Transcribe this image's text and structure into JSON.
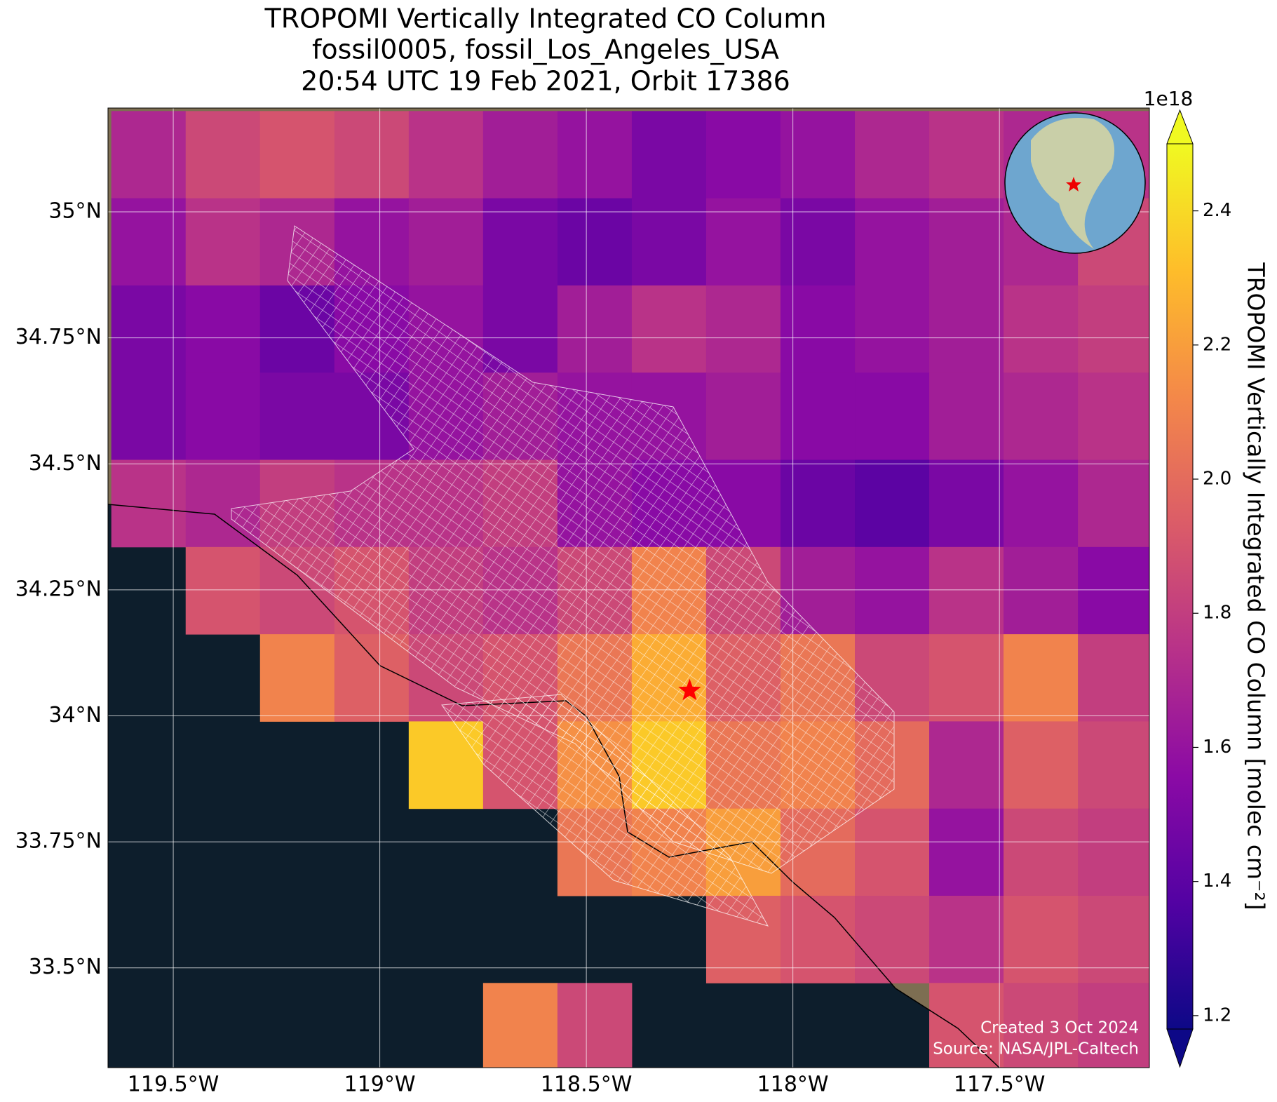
{
  "chart_data": {
    "type": "heatmap",
    "title": [
      "TROPOMI Vertically Integrated CO Column",
      "fossil0005, fossil_Los_Angeles_USA",
      "20:54 UTC 19 Feb 2021, Orbit 17386"
    ],
    "xlim": [
      -119.658,
      -117.137
    ],
    "ylim": [
      33.302,
      35.206
    ],
    "xticks": [
      {
        "value": -119.5,
        "label": "119.5°W"
      },
      {
        "value": -119,
        "label": "119°W"
      },
      {
        "value": -118.5,
        "label": "118.5°W"
      },
      {
        "value": -118,
        "label": "118°W"
      },
      {
        "value": -117.5,
        "label": "117.5°W"
      }
    ],
    "yticks": [
      {
        "value": 33.5,
        "label": "33.5°N"
      },
      {
        "value": 33.75,
        "label": "33.75°N"
      },
      {
        "value": 34,
        "label": "34°N"
      },
      {
        "value": 34.25,
        "label": "34.25°N"
      },
      {
        "value": 34.5,
        "label": "34.5°N"
      },
      {
        "value": 34.75,
        "label": "34.75°N"
      },
      {
        "value": 35,
        "label": "35°N"
      }
    ],
    "grid": true,
    "colormap": "plasma",
    "colorbar": {
      "label": "TROPOMI Vertically Integrated CO Column [molec cm⁻²]",
      "offset_label": "1e18",
      "lim": [
        1.18,
        2.5
      ],
      "ticks": [
        1.2,
        1.4,
        1.6,
        1.8,
        {
          "value": 2,
          "label": "2.0"
        },
        2.2,
        2.4
      ]
    },
    "grid_cells": {
      "lon_edges": [
        -119.65,
        -119.47,
        -119.29,
        -119.11,
        -118.93,
        -118.75,
        -118.57,
        -118.39,
        -118.21,
        -118.03,
        -117.85,
        -117.67,
        -117.49,
        -117.31,
        -117.13
      ],
      "lat_edges": [
        35.2,
        35.027,
        34.854,
        34.681,
        34.508,
        34.335,
        34.162,
        33.989,
        33.816,
        33.643,
        33.47,
        33.297
      ],
      "values": [
        [
          1.7,
          1.85,
          1.9,
          1.85,
          1.75,
          1.65,
          1.6,
          1.5,
          1.55,
          1.6,
          1.7,
          1.75,
          1.7,
          1.75
        ],
        [
          1.6,
          1.75,
          1.7,
          1.6,
          1.65,
          1.5,
          1.45,
          1.5,
          1.6,
          1.5,
          1.6,
          1.65,
          1.7,
          1.85
        ],
        [
          1.5,
          1.55,
          1.45,
          1.55,
          1.6,
          1.5,
          1.65,
          1.75,
          1.7,
          1.55,
          1.6,
          1.65,
          1.75,
          1.8
        ],
        [
          1.5,
          1.55,
          1.5,
          1.5,
          1.6,
          1.65,
          1.6,
          1.6,
          1.65,
          1.55,
          1.55,
          1.65,
          1.7,
          1.75
        ],
        [
          1.75,
          1.7,
          1.8,
          1.75,
          1.75,
          1.8,
          1.6,
          1.55,
          1.55,
          1.45,
          1.4,
          1.5,
          1.6,
          1.7
        ],
        [
          null,
          1.9,
          1.85,
          1.9,
          1.8,
          1.75,
          1.85,
          2.1,
          1.85,
          1.65,
          1.6,
          1.75,
          1.65,
          1.55
        ],
        [
          null,
          null,
          2.1,
          1.95,
          1.85,
          1.9,
          2.05,
          2.25,
          1.95,
          2.05,
          1.85,
          1.9,
          2.1,
          1.8
        ],
        [
          null,
          null,
          null,
          null,
          2.35,
          1.9,
          2.15,
          2.35,
          2.05,
          2.1,
          2.0,
          1.7,
          1.95,
          1.85
        ],
        [
          null,
          null,
          null,
          null,
          null,
          null,
          2.05,
          2.1,
          2.2,
          2.0,
          1.9,
          1.6,
          1.85,
          1.8
        ],
        [
          null,
          null,
          null,
          null,
          null,
          null,
          null,
          null,
          1.95,
          1.9,
          1.85,
          1.75,
          1.9,
          1.85
        ],
        [
          null,
          null,
          null,
          null,
          null,
          2.1,
          1.85,
          null,
          null,
          null,
          null,
          1.9,
          1.85,
          1.8
        ]
      ]
    },
    "marker": {
      "x": -118.25,
      "y": 34.05
    },
    "annotations": [
      "Created 3 Oct 2024",
      "Source: NASA/JPL-Caltech"
    ]
  }
}
